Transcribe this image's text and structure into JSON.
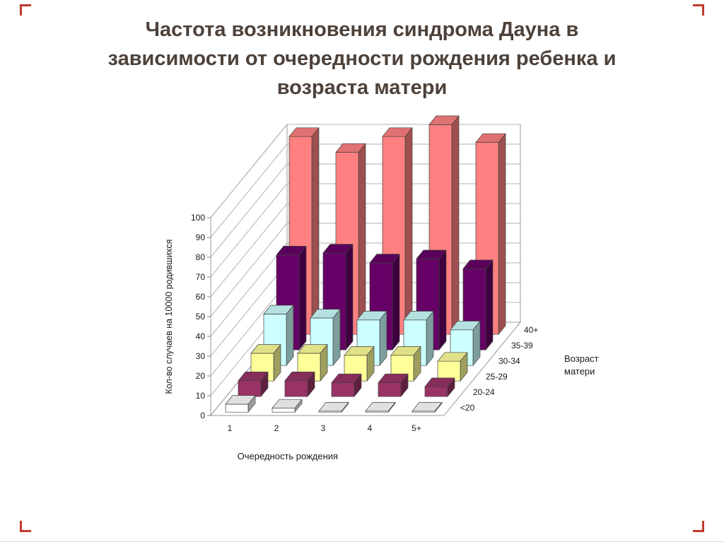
{
  "slide": {
    "title_lines": [
      "Частота возникновения синдрома Дауна в",
      "зависимости от очередности рождения ребенка и",
      "возраста  матери"
    ],
    "title_color": "#4d4139",
    "accent_color": "#c0392b"
  },
  "chart_data": {
    "type": "bar",
    "projection": "3d",
    "title": "Частота возникновения синдрома Дауна в зависимости от очередности рождения ребенка и возраста матери",
    "xlabel": "Очередность рождения",
    "ylabel": "Кол-во случаев на 10000 родившихся",
    "zlabel_lines": [
      "Возраст",
      "матери"
    ],
    "categories": [
      "1",
      "2",
      "3",
      "4",
      "5+"
    ],
    "yticks": [
      0,
      10,
      20,
      30,
      40,
      50,
      60,
      70,
      80,
      90,
      100
    ],
    "ylim": [
      0,
      100
    ],
    "grid": true,
    "legend_position": "depth-axis-right",
    "series": [
      {
        "name": "<20",
        "color": "#FFFFFF",
        "values": [
          4,
          2,
          0.5,
          0.5,
          0.5
        ]
      },
      {
        "name": "20-24",
        "color": "#993366",
        "values": [
          8,
          8,
          7,
          7,
          5
        ]
      },
      {
        "name": "25-29",
        "color": "#FFFF99",
        "values": [
          14,
          14,
          13,
          13,
          10
        ]
      },
      {
        "name": "30-34",
        "color": "#CCFFFF",
        "values": [
          26,
          24,
          23,
          23,
          18
        ]
      },
      {
        "name": "35-39",
        "color": "#660066",
        "values": [
          48,
          49,
          44,
          46,
          41
        ]
      },
      {
        "name": "40+",
        "color": "#FF8080",
        "values": [
          100,
          92,
          100,
          106,
          97
        ]
      }
    ]
  }
}
